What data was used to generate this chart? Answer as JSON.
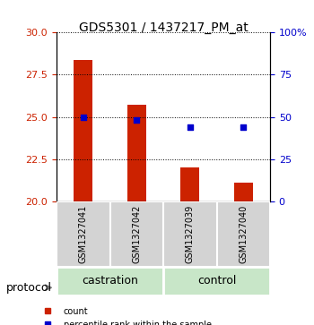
{
  "title": "GDS5301 / 1437217_PM_at",
  "samples": [
    "GSM1327041",
    "GSM1327042",
    "GSM1327039",
    "GSM1327040"
  ],
  "groups": [
    "castration",
    "castration",
    "control",
    "control"
  ],
  "group_labels": [
    "castration",
    "control"
  ],
  "bar_values": [
    28.4,
    25.7,
    22.0,
    21.1
  ],
  "dot_values": [
    25.0,
    24.8,
    24.2,
    24.2
  ],
  "bar_color": "#cc2200",
  "dot_color": "#0000cc",
  "ylim_left": [
    20,
    30
  ],
  "ylim_right": [
    0,
    100
  ],
  "yticks_left": [
    20,
    22.5,
    25,
    27.5,
    30
  ],
  "yticks_right": [
    0,
    25,
    50,
    75,
    100
  ],
  "ytick_labels_right": [
    "0",
    "25",
    "50",
    "75",
    "100%"
  ],
  "bar_width": 0.35,
  "group_colors": [
    "#cceecc",
    "#66dd66"
  ],
  "group_bg_color": "#c8e6c8",
  "sample_bg_color": "#d3d3d3",
  "legend_count_label": "count",
  "legend_pct_label": "percentile rank within the sample",
  "protocol_label": "protocol"
}
